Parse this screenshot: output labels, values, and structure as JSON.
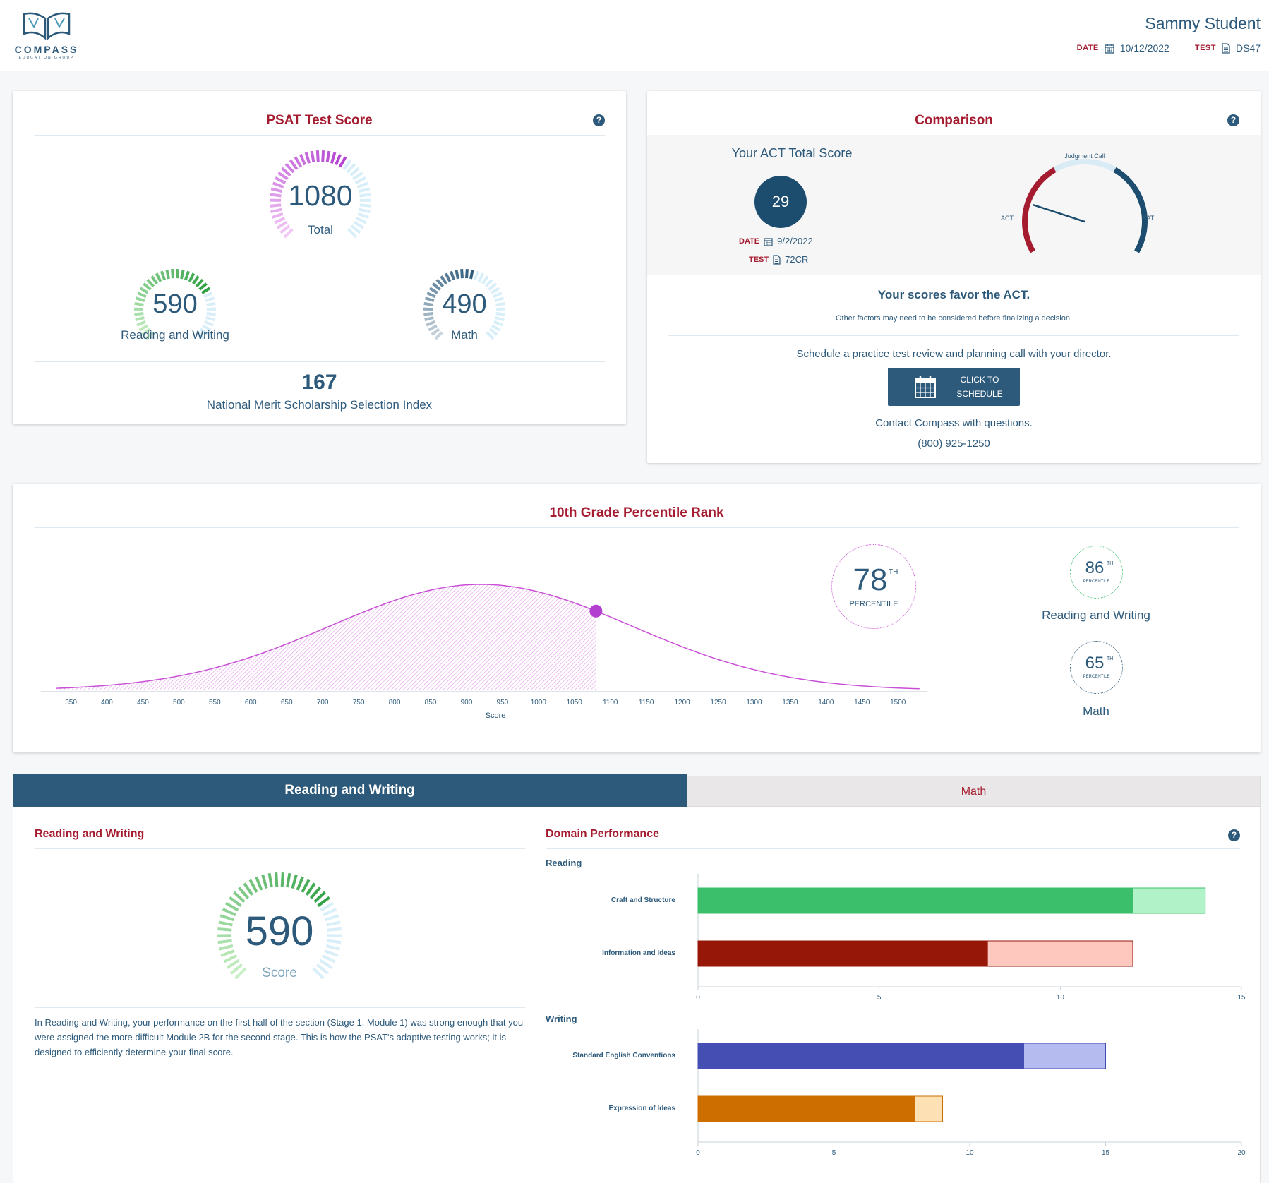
{
  "header": {
    "logo_text": "COMPASS",
    "logo_sub": "EDUCATION GROUP",
    "student_name": "Sammy Student",
    "date_label": "DATE",
    "date_value": "10/12/2022",
    "test_label": "TEST",
    "test_value": "DS47"
  },
  "psat": {
    "title": "PSAT Test Score",
    "total": {
      "value": "1080",
      "label": "Total",
      "min": 320,
      "max": 1520,
      "score": 1080
    },
    "reading_writing": {
      "value": "590",
      "label": "Reading and Writing",
      "min": 160,
      "max": 760,
      "score": 590
    },
    "math": {
      "value": "490",
      "label": "Math",
      "min": 160,
      "max": 760,
      "score": 490
    },
    "nmssi": {
      "value": "167",
      "label": "National Merit Scholarship Selection Index"
    }
  },
  "comparison": {
    "title": "Comparison",
    "act_title": "Your ACT Total Score",
    "act_score": "29",
    "date_label": "DATE",
    "date_value": "9/2/2022",
    "test_label": "TEST",
    "test_value": "72CR",
    "gauge": {
      "left": "ACT",
      "right": "SAT",
      "top": "Judgment Call",
      "needle_fraction": 0.2
    },
    "favor": "Your scores favor the ACT.",
    "note": "Other factors may need to be considered before finalizing a decision.",
    "schedule_text": "Schedule a practice test review and planning call with your director.",
    "button_line1": "CLICK TO",
    "button_line2": "SCHEDULE",
    "contact": "Contact Compass with questions.",
    "phone": "(800) 925-1250"
  },
  "percentile": {
    "title": "10th Grade Percentile Rank",
    "total": {
      "value": "78",
      "sup": "TH",
      "label": "PERCENTILE"
    },
    "reading_writing": {
      "value": "86",
      "sup": "TH",
      "label": "PERCENTILE",
      "name": "Reading and Writing"
    },
    "math": {
      "value": "65",
      "sup": "TH",
      "label": "PERCENTILE",
      "name": "Math"
    },
    "xlabel": "Score",
    "ticks": [
      "350",
      "400",
      "450",
      "500",
      "550",
      "600",
      "650",
      "700",
      "750",
      "800",
      "850",
      "900",
      "950",
      "1000",
      "1050",
      "1100",
      "1150",
      "1200",
      "1250",
      "1300",
      "1350",
      "1400",
      "1450",
      "1500"
    ]
  },
  "tabs": {
    "reading_writing": "Reading and Writing",
    "math": "Math"
  },
  "section": {
    "title": "Reading and Writing",
    "score": "590",
    "score_label": "Score",
    "description": "In Reading and Writing, your performance on the first half of the section (Stage 1: Module 1) was strong enough that you were assigned the more difficult Module 2B for the second stage. This is how the PSAT's adaptive testing works; it is designed to efficiently determine your final score."
  },
  "domain": {
    "title": "Domain Performance",
    "reading_label": "Reading",
    "writing_label": "Writing"
  },
  "colors": {
    "brand": "#2d5a7b",
    "accent_red": "#a51c30",
    "curve": "#c94fd6"
  },
  "chart_data": [
    {
      "type": "area",
      "xlabel": "Score",
      "xlim": [
        320,
        1540
      ],
      "marker_score": 1080,
      "x": [
        350,
        400,
        450,
        500,
        550,
        600,
        650,
        700,
        750,
        800,
        850,
        900,
        950,
        1000,
        1050,
        1100,
        1150,
        1200,
        1250,
        1300,
        1350,
        1400,
        1450,
        1500
      ]
    },
    {
      "type": "bar",
      "group": "Reading",
      "categories": [
        "Craft and Structure",
        "Information and Ideas"
      ],
      "series": [
        {
          "values": [
            12,
            8
          ],
          "colors": [
            "#3bbf6a",
            "#961708"
          ]
        },
        {
          "values": [
            14,
            12
          ],
          "colors": [
            "#b2f2c8",
            "#fec8bf"
          ]
        }
      ],
      "xlim": [
        0,
        15
      ],
      "ticks": [
        0,
        5,
        10,
        15
      ]
    },
    {
      "type": "bar",
      "group": "Writing",
      "categories": [
        "Standard English Conventions",
        "Expression of Ideas"
      ],
      "series": [
        {
          "values": [
            12,
            8
          ],
          "colors": [
            "#444eb3",
            "#cc6e00"
          ]
        },
        {
          "values": [
            15,
            9
          ],
          "colors": [
            "#b6bbef",
            "#fde0b4"
          ]
        }
      ],
      "xlim": [
        0,
        20
      ],
      "ticks": [
        0,
        5,
        10,
        15,
        20
      ]
    }
  ]
}
